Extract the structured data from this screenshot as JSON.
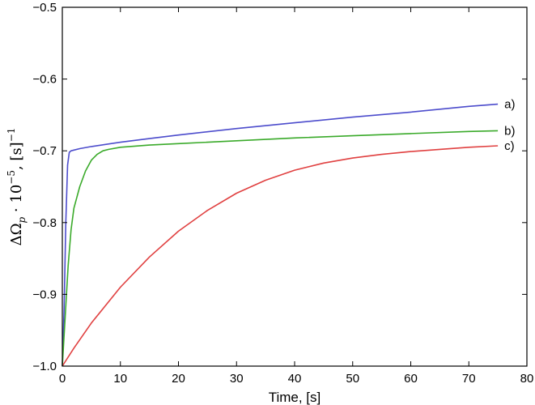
{
  "chart_data": {
    "type": "line",
    "xlabel": "Time, [s]",
    "ylabel": {
      "prefix": "ΔΩ",
      "subscript": "p",
      "middle": " · 10",
      "exponent": "−5",
      "unit": ", [s]",
      "unit_exponent": "−1"
    },
    "xlim": [
      0,
      80
    ],
    "ylim": [
      -1.0,
      -0.5
    ],
    "x_ticks": [
      0,
      10,
      20,
      30,
      40,
      50,
      60,
      70,
      80
    ],
    "x_tick_labels": [
      "0",
      "10",
      "20",
      "30",
      "40",
      "50",
      "60",
      "70",
      "80"
    ],
    "y_ticks": [
      -1.0,
      -0.9,
      -0.8,
      -0.7,
      -0.6,
      -0.5
    ],
    "y_tick_labels": [
      "−1.0",
      "−0.9",
      "−0.8",
      "−0.7",
      "−0.6",
      "−0.5"
    ],
    "grid": false,
    "legend": "none",
    "series": [
      {
        "name": "a)",
        "color": "#4c4ccc",
        "x": [
          0,
          0.3,
          0.6,
          0.9,
          1.2,
          1.5,
          2,
          3,
          5,
          10,
          15,
          20,
          30,
          40,
          50,
          60,
          70,
          75
        ],
        "y": [
          -1.0,
          -0.92,
          -0.8,
          -0.72,
          -0.702,
          -0.7,
          -0.699,
          -0.697,
          -0.694,
          -0.688,
          -0.683,
          -0.678,
          -0.669,
          -0.661,
          -0.653,
          -0.646,
          -0.638,
          -0.635
        ]
      },
      {
        "name": "b)",
        "color": "#3aaa2a",
        "x": [
          0,
          0.5,
          1,
          1.5,
          2,
          2.5,
          3,
          4,
          5,
          6,
          7,
          8,
          10,
          15,
          20,
          30,
          40,
          50,
          60,
          70,
          75
        ],
        "y": [
          -1.0,
          -0.93,
          -0.86,
          -0.81,
          -0.78,
          -0.765,
          -0.75,
          -0.728,
          -0.713,
          -0.705,
          -0.7,
          -0.698,
          -0.695,
          -0.692,
          -0.69,
          -0.686,
          -0.682,
          -0.679,
          -0.676,
          -0.673,
          -0.672
        ]
      },
      {
        "name": "c)",
        "color": "#e04040",
        "x": [
          0,
          2,
          5,
          10,
          15,
          20,
          25,
          30,
          35,
          40,
          45,
          50,
          55,
          60,
          65,
          70,
          75
        ],
        "y": [
          -1.0,
          -0.975,
          -0.94,
          -0.89,
          -0.848,
          -0.812,
          -0.783,
          -0.759,
          -0.741,
          -0.727,
          -0.717,
          -0.71,
          -0.705,
          -0.701,
          -0.698,
          -0.695,
          -0.693
        ]
      }
    ]
  }
}
